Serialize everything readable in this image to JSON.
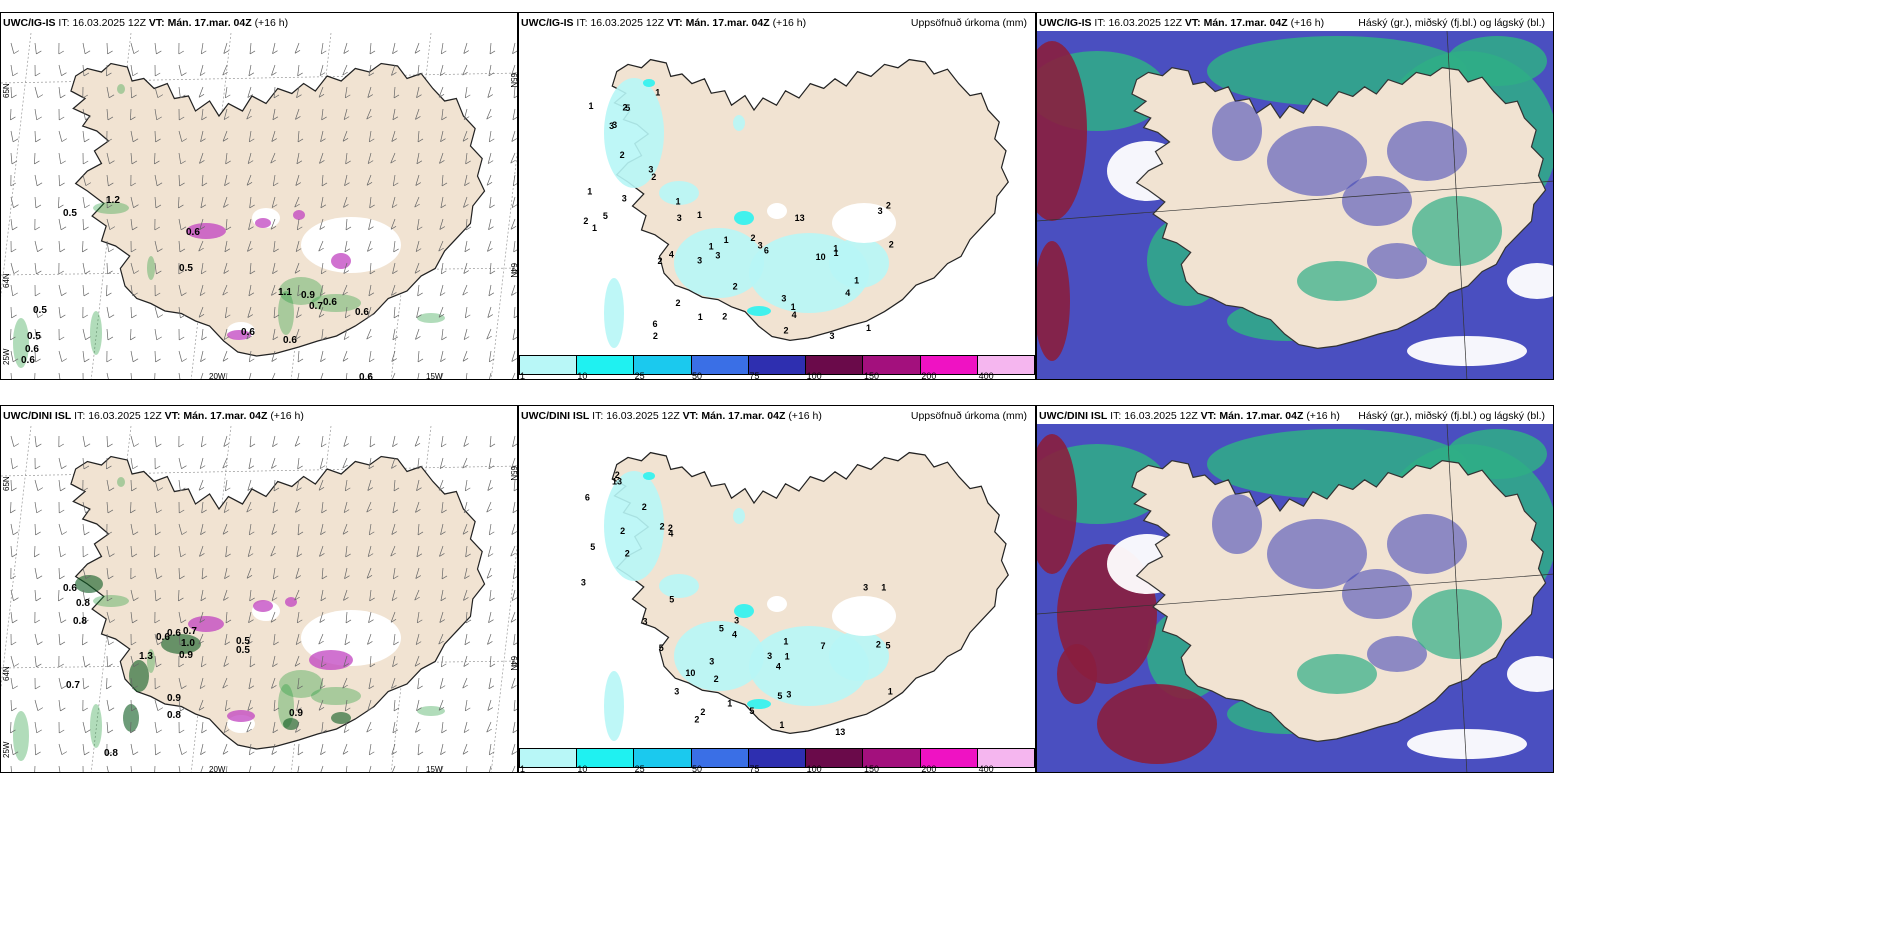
{
  "colors": {
    "land": "#f1e3d2",
    "precip_light": "#b7f6f6",
    "precip_mid": "#2ef2f0",
    "cloud_high": "#3a3fb7",
    "cloud_mid": "#2fae86",
    "cloud_low": "#e8e8ff",
    "wine": "#8a1e3e",
    "green_precip": "#1f9a3a",
    "snow_purple": "#c043c0"
  },
  "colorbar": {
    "colors": [
      "#b8f7f7",
      "#1ff1f1",
      "#1bc9ee",
      "#3a6fe6",
      "#2e2fb0",
      "#6a0a4a",
      "#a3107d",
      "#ef12c3",
      "#f5b6ef"
    ],
    "labels": [
      "1",
      "10",
      "25",
      "50",
      "75",
      "100",
      "150",
      "200",
      "400"
    ]
  },
  "rows": [
    {
      "model": "UWC/IG-IS",
      "it_label": "IT:",
      "it_value": "16.03.2025 12Z",
      "vt_label": "VT:",
      "vt_value": "Mán. 17.mar. 04Z",
      "lead": "(+16 h)",
      "wind_labels": [
        "0.5",
        "1.2",
        "0.6",
        "0.5",
        "0.5",
        "1.1",
        "0.9",
        "0.7",
        "0.6",
        "0.6",
        "0.6",
        "0.5",
        "0.6",
        "0.6",
        "0.6",
        "0.6"
      ],
      "axis_labels": {
        "lat_left": "65N",
        "lat_left2": "64N",
        "lon1": "20W",
        "lon2": "15W",
        "lon0": "25W",
        "lat_right": "65N",
        "lat_right2": "64N"
      },
      "precip_labels": [
        "3",
        "2",
        "3",
        "2",
        "1",
        "2",
        "2",
        "1",
        "3",
        "3",
        "6",
        "4",
        "5",
        "3",
        "1",
        "1",
        "1",
        "2",
        "3",
        "3",
        "10",
        "3",
        "3",
        "13",
        "1",
        "2",
        "1",
        "1",
        "2",
        "3",
        "3",
        "4",
        "4",
        "5",
        "6",
        "1",
        "2",
        "1",
        "1",
        "1",
        "2",
        "2",
        "2",
        "2",
        "1",
        "1",
        "2"
      ],
      "precip_title": "Uppsöfnuð úrkoma (mm)",
      "cloud_title": "Háský (gr.), miðský (fj.bl.) og lágský (bl.)"
    },
    {
      "model": "UWC/DINI ISL",
      "it_label": "IT:",
      "it_value": "16.03.2025 12Z",
      "vt_label": "VT:",
      "vt_value": "Mán. 17.mar. 04Z",
      "lead": "(+16 h)",
      "wind_labels": [
        "0.6",
        "0.8",
        "0.8",
        "0.6",
        "0.6",
        "0.7",
        "1.0",
        "0.9",
        "0.5",
        "0.5",
        "1.3",
        "0.7",
        "0.9",
        "0.8",
        "0.8",
        "0.9"
      ],
      "axis_labels": {
        "lat_left": "65N",
        "lat_left2": "64N",
        "lon1": "20W",
        "lon2": "15W",
        "lon0": "25W",
        "lat_right": "65N",
        "lat_right2": "64N"
      },
      "precip_labels": [
        "2",
        "3",
        "5",
        "2",
        "2",
        "1",
        "6",
        "4",
        "4",
        "2",
        "3",
        "1",
        "13",
        "10",
        "13",
        "3",
        "2",
        "3",
        "2",
        "3",
        "1",
        "5",
        "3",
        "2",
        "3",
        "5",
        "7",
        "4",
        "5",
        "5",
        "5",
        "5",
        "3",
        "2",
        "1",
        "1",
        "2",
        "2",
        "1"
      ],
      "precip_title": "Uppsöfnuð úrkoma (mm)",
      "cloud_title": "Háský (gr.), miðský (fj.bl.) og lágský (bl.)"
    }
  ]
}
